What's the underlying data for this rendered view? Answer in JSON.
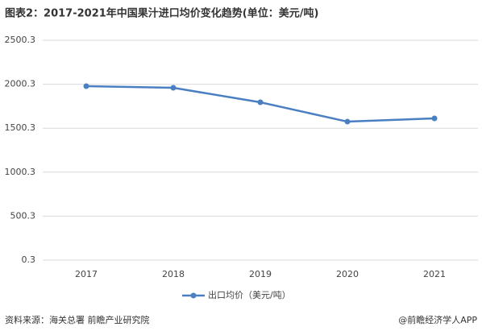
{
  "chart_data": {
    "type": "line",
    "title": "图表2：2017-2021年中国果汁进口均价变化趋势(单位：美元/吨)",
    "categories": [
      "2017",
      "2018",
      "2019",
      "2020",
      "2021"
    ],
    "series": [
      {
        "name": "出口均价（美元/吨）",
        "color": "#4a7fc1",
        "values": [
          1978,
          1960,
          1795,
          1575,
          1612
        ]
      }
    ],
    "ylim": [
      0.3,
      2500.3
    ],
    "yticks": [
      0.3,
      500.3,
      1000.3,
      1500.3,
      2000.3,
      2500.3
    ],
    "grid": true,
    "legend": "bottom"
  },
  "footer": {
    "source": "资料来源：海关总署 前瞻产业研究院",
    "credit": "@前瞻经济学人APP"
  }
}
